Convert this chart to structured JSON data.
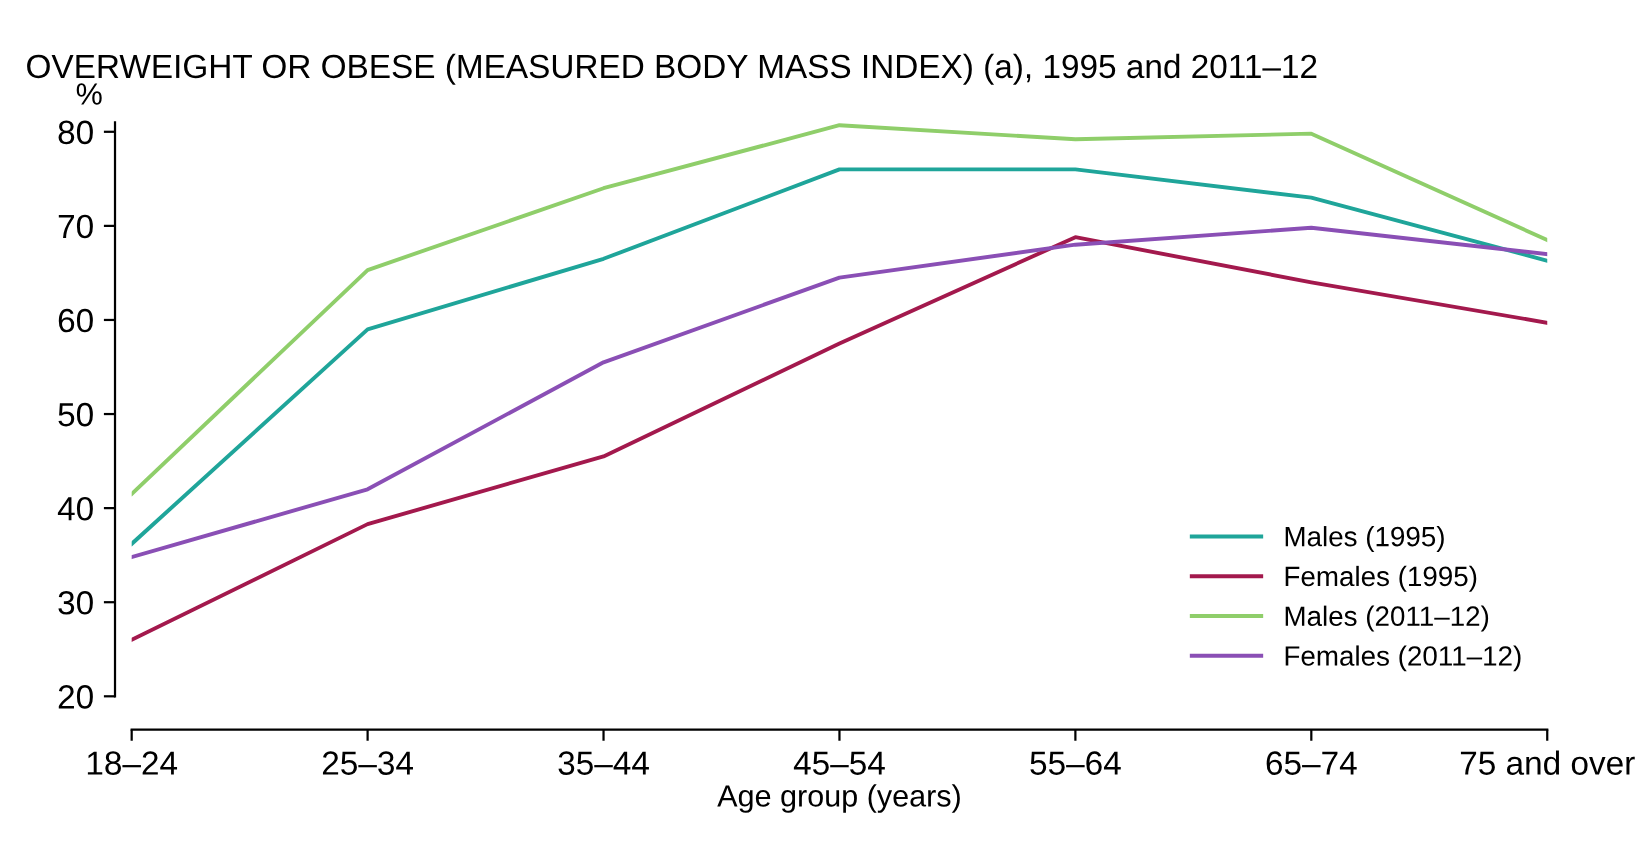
{
  "chart_data": {
    "type": "line",
    "title": "OVERWEIGHT OR OBESE (MEASURED BODY MASS INDEX) (a), 1995 and 2011–12",
    "xlabel": "Age group (years)",
    "ylabel": "%",
    "categories": [
      "18–24",
      "25–34",
      "35–44",
      "45–54",
      "55–64",
      "65–74",
      "75 and over"
    ],
    "series": [
      {
        "name": "Males (1995)",
        "color": "#1fa59a",
        "values": [
          36.2,
          59,
          66.5,
          76,
          76,
          73,
          66.3
        ]
      },
      {
        "name": "Females (1995)",
        "color": "#a3194d",
        "values": [
          26,
          38.3,
          45.5,
          57.5,
          68.8,
          64,
          59.7
        ]
      },
      {
        "name": "Males (2011–12)",
        "color": "#8fce6a",
        "values": [
          41.5,
          65.3,
          74,
          80.7,
          79.2,
          79.8,
          68.5
        ]
      },
      {
        "name": "Females (2011–12)",
        "color": "#8a4fb5",
        "values": [
          34.8,
          42,
          55.5,
          64.5,
          68,
          69.8,
          67
        ]
      }
    ],
    "ylim": [
      20,
      81
    ],
    "yticks": [
      20,
      30,
      40,
      50,
      60,
      70,
      80
    ],
    "grid": false,
    "legend": "bottom right",
    "marker": "none",
    "line_style": "solid"
  }
}
